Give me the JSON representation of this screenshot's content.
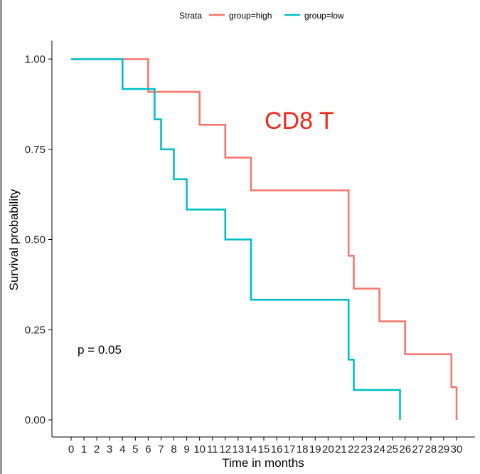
{
  "chart_data": {
    "type": "line",
    "xlabel": "Time in months",
    "ylabel": "Survival probability",
    "xlim": [
      0,
      30
    ],
    "ylim": [
      0,
      1
    ],
    "x_ticks": [
      0,
      1,
      2,
      3,
      4,
      5,
      6,
      7,
      8,
      9,
      10,
      11,
      12,
      13,
      14,
      15,
      16,
      17,
      18,
      19,
      20,
      21,
      22,
      23,
      24,
      25,
      26,
      27,
      28,
      29,
      30
    ],
    "y_ticks": [
      "0.00",
      "0.25",
      "0.50",
      "0.75",
      "1.00"
    ],
    "grid": false,
    "legend": {
      "title": "Strata",
      "position": "top",
      "entries": [
        "group=high",
        "group=low"
      ]
    },
    "series": [
      {
        "name": "group=high",
        "color": "#F8766D",
        "step_x": [
          0,
          6,
          6,
          10,
          10,
          12,
          12,
          14,
          14,
          21.6,
          21.6,
          22,
          22,
          24,
          24,
          26,
          26,
          29.6,
          29.6,
          30,
          30
        ],
        "step_y": [
          1.0,
          1.0,
          0.909,
          0.909,
          0.818,
          0.818,
          0.727,
          0.727,
          0.636,
          0.636,
          0.455,
          0.455,
          0.364,
          0.364,
          0.273,
          0.273,
          0.182,
          0.182,
          0.091,
          0.091,
          0.0
        ]
      },
      {
        "name": "group=low",
        "color": "#00BFC4",
        "step_x": [
          0,
          4,
          4,
          6.5,
          6.5,
          7,
          7,
          8,
          8,
          9,
          9,
          12,
          12,
          14,
          14,
          21.6,
          21.6,
          22,
          22,
          25.6,
          25.6
        ],
        "step_y": [
          1.0,
          1.0,
          0.917,
          0.917,
          0.833,
          0.833,
          0.75,
          0.75,
          0.667,
          0.667,
          0.583,
          0.583,
          0.5,
          0.5,
          0.333,
          0.333,
          0.167,
          0.167,
          0.083,
          0.083,
          0.0
        ]
      }
    ],
    "annotations": [
      {
        "text": "p = 0.05"
      },
      {
        "text": "CD8 T",
        "color": "#F0281E"
      }
    ]
  }
}
